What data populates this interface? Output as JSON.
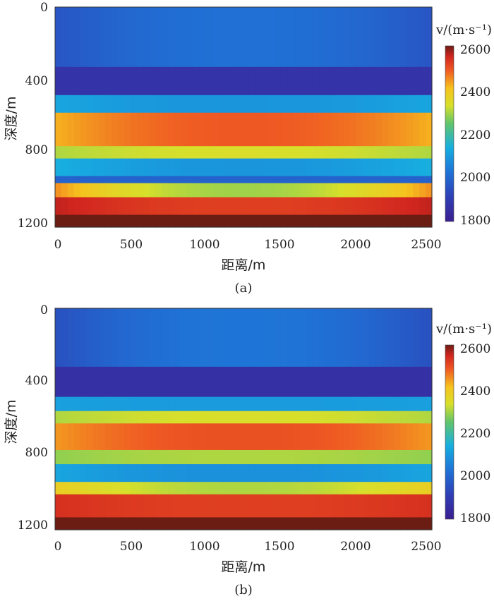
{
  "chart_data": [
    {
      "type": "heatmap",
      "panel_label": "(a)",
      "xlabel": "距离/m",
      "ylabel": "深度/m",
      "xlim": [
        0,
        2500
      ],
      "ylim": [
        0,
        1250
      ],
      "x_ticks": [
        "0",
        "500",
        "1000",
        "1500",
        "2000",
        "2500"
      ],
      "y_ticks": [
        "0",
        "400",
        "800",
        "1200"
      ],
      "colorbar": {
        "label": "v/(m·s⁻¹)",
        "range": [
          1800,
          2600
        ],
        "ticks": [
          "2600",
          "2400",
          "2200",
          "2000",
          "1800"
        ]
      },
      "layers": [
        {
          "top": 0,
          "bottom": 340,
          "velocity": 2020,
          "edge_velocity": 1960
        },
        {
          "top": 340,
          "bottom": 500,
          "velocity": 1870,
          "edge_velocity": 1870
        },
        {
          "top": 500,
          "bottom": 600,
          "velocity": 2090,
          "edge_velocity": 2120
        },
        {
          "top": 600,
          "bottom": 790,
          "velocity": 2490,
          "edge_velocity": 2420
        },
        {
          "top": 790,
          "bottom": 860,
          "velocity": 2330,
          "edge_velocity": 2300
        },
        {
          "top": 860,
          "bottom": 960,
          "velocity": 2090,
          "edge_velocity": 2140
        },
        {
          "top": 960,
          "bottom": 1000,
          "velocity": 1990,
          "edge_velocity": 1990
        },
        {
          "top": 1000,
          "bottom": 1080,
          "velocity": 2290,
          "edge_velocity": 2450
        },
        {
          "top": 1080,
          "bottom": 1180,
          "velocity": 2520,
          "edge_velocity": 2560
        },
        {
          "top": 1180,
          "bottom": 1250,
          "velocity": 2640,
          "edge_velocity": 2640
        }
      ]
    },
    {
      "type": "heatmap",
      "panel_label": "(b)",
      "xlabel": "距离/m",
      "ylabel": "深度/m",
      "xlim": [
        0,
        2500
      ],
      "ylim": [
        0,
        1250
      ],
      "x_ticks": [
        "0",
        "500",
        "1000",
        "1500",
        "2000",
        "2500"
      ],
      "y_ticks": [
        "0",
        "400",
        "800",
        "1200"
      ],
      "colorbar": {
        "label": "v/(m·s⁻¹)",
        "range": [
          1800,
          2600
        ],
        "ticks": [
          "2600",
          "2400",
          "2200",
          "2000",
          "1800"
        ]
      },
      "layers": [
        {
          "top": 0,
          "bottom": 330,
          "velocity": 2030,
          "edge_velocity": 1950
        },
        {
          "top": 330,
          "bottom": 500,
          "velocity": 1860,
          "edge_velocity": 1860
        },
        {
          "top": 500,
          "bottom": 580,
          "velocity": 2100,
          "edge_velocity": 2110
        },
        {
          "top": 580,
          "bottom": 650,
          "velocity": 2330,
          "edge_velocity": 2300
        },
        {
          "top": 650,
          "bottom": 800,
          "velocity": 2500,
          "edge_velocity": 2440
        },
        {
          "top": 800,
          "bottom": 880,
          "velocity": 2300,
          "edge_velocity": 2280
        },
        {
          "top": 880,
          "bottom": 980,
          "velocity": 2080,
          "edge_velocity": 2120
        },
        {
          "top": 980,
          "bottom": 1050,
          "velocity": 2300,
          "edge_velocity": 2380
        },
        {
          "top": 1050,
          "bottom": 1180,
          "velocity": 2520,
          "edge_velocity": 2540
        },
        {
          "top": 1180,
          "bottom": 1250,
          "velocity": 2640,
          "edge_velocity": 2640
        }
      ]
    }
  ]
}
